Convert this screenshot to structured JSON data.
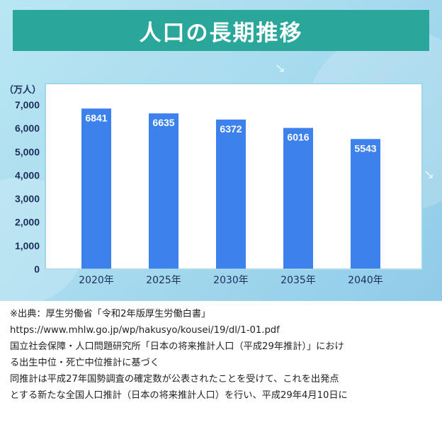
{
  "header": {
    "title": "人口の長期推移"
  },
  "colors": {
    "banner": "#2aa79a",
    "bar": "#3d82ec",
    "axis_text": "#1b2f5a",
    "plot_bg": "#ffffff",
    "plot_border": "#9fd6ec"
  },
  "chart_data": {
    "type": "bar",
    "title": "人口の長期推移",
    "unit_label": "（万人）",
    "categories": [
      "2020年",
      "2025年",
      "2030年",
      "2035年",
      "2040年"
    ],
    "values": [
      6841,
      6635,
      6372,
      6016,
      5543
    ],
    "data_labels": [
      "6841",
      "6635",
      "6372",
      "6016",
      "5543"
    ],
    "ylim": [
      0,
      7000
    ],
    "yticks": [
      "0",
      "1,000",
      "2,000",
      "3,000",
      "4,000",
      "5,000",
      "6,000",
      "7,000"
    ],
    "grid": false,
    "xlabel": "",
    "ylabel": ""
  },
  "notes": [
    "※出典：厚生労働省「令和2年版厚生労働白書」",
    "https://www.mhlw.go.jp/wp/hakusyo/kousei/19/dl/1-01.pdf",
    "国立社会保障・人口問題研究所「日本の将来推計人口（平成29年推計）」におけ",
    "る出生中位・死亡中位推計に基づく",
    "同推計は平成27年国勢調査の確定数が公表されたことを受けて、これを出発点",
    "とする新たな全国人口推計（日本の将来推計人口）を行い、平成29年4月10日に"
  ]
}
